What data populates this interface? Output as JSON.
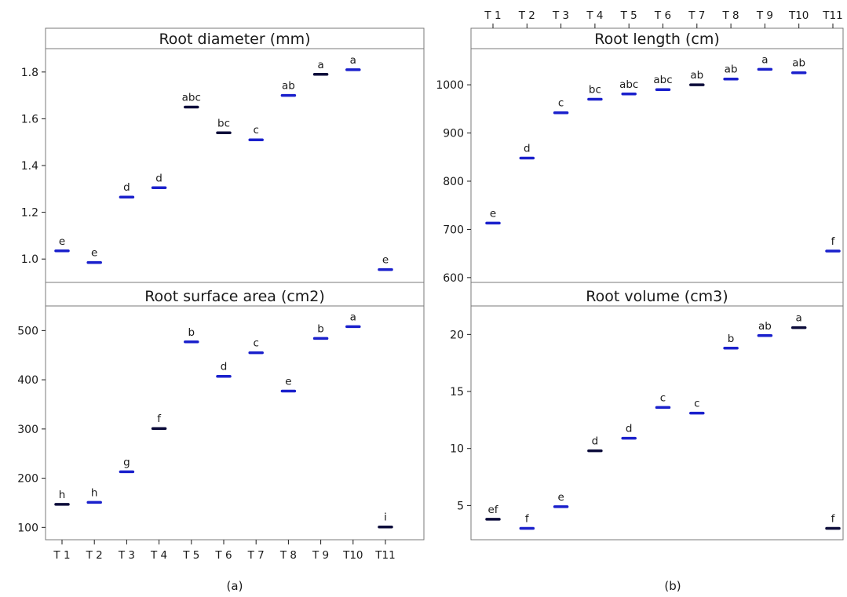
{
  "figure": {
    "captions": [
      "(a)",
      "(b)"
    ]
  },
  "chart_data": [
    {
      "type": "scatter",
      "title": "Root diameter (mm)",
      "categories": [
        "T 1",
        "T 2",
        "T 3",
        "T 4",
        "T 5",
        "T 6",
        "T 7",
        "T 8",
        "T 9",
        "T10",
        "T11"
      ],
      "values": [
        1.035,
        0.985,
        1.265,
        1.305,
        1.65,
        1.54,
        1.51,
        1.7,
        1.79,
        1.81,
        0.955
      ],
      "letters": [
        "e",
        "e",
        "d",
        "d",
        "abc",
        "bc",
        "c",
        "ab",
        "a",
        "a",
        "e"
      ],
      "marker_colors": [
        "#1a20cc",
        "#1a20cc",
        "#1a20cc",
        "#1a20cc",
        "#0c0c3a",
        "#0c0c3a",
        "#1a20cc",
        "#1a20cc",
        "#0c0c3a",
        "#1a20cc",
        "#1a20cc"
      ],
      "yticks": [
        "1.0",
        "1.2",
        "1.4",
        "1.6",
        "1.8"
      ],
      "ytick_values": [
        1.0,
        1.2,
        1.4,
        1.6,
        1.8
      ],
      "ylim": [
        0.9,
        1.9
      ]
    },
    {
      "type": "scatter",
      "title": "Root surface area (cm2)",
      "categories": [
        "T 1",
        "T 2",
        "T 3",
        "T 4",
        "T 5",
        "T 6",
        "T 7",
        "T 8",
        "T 9",
        "T10",
        "T11"
      ],
      "values": [
        147,
        151,
        213,
        301,
        477,
        407,
        455,
        377,
        484,
        508,
        101
      ],
      "letters": [
        "h",
        "h",
        "g",
        "f",
        "b",
        "d",
        "c",
        "e",
        "b",
        "a",
        "i"
      ],
      "marker_colors": [
        "#0c0c3a",
        "#1a20cc",
        "#1a20cc",
        "#0c0c3a",
        "#1a20cc",
        "#1a20cc",
        "#1a20cc",
        "#1a20cc",
        "#1a20cc",
        "#1a20cc",
        "#0c0c3a"
      ],
      "yticks": [
        "100",
        "200",
        "300",
        "400",
        "500"
      ],
      "ytick_values": [
        100,
        200,
        300,
        400,
        500
      ],
      "ylim": [
        75,
        550
      ],
      "xticks_shown": true
    },
    {
      "type": "scatter",
      "title": "Root length (cm)",
      "categories": [
        "T 1",
        "T 2",
        "T 3",
        "T 4",
        "T 5",
        "T 6",
        "T 7",
        "T 8",
        "T 9",
        "T10",
        "T11"
      ],
      "values": [
        713,
        848,
        942,
        970,
        981,
        990,
        1000,
        1012,
        1032,
        1025,
        655
      ],
      "letters": [
        "e",
        "d",
        "c",
        "bc",
        "abc",
        "abc",
        "ab",
        "ab",
        "a",
        "ab",
        "f"
      ],
      "marker_colors": [
        "#1a20cc",
        "#1a20cc",
        "#1a20cc",
        "#1a20cc",
        "#1a20cc",
        "#1a20cc",
        "#0c0c3a",
        "#1a20cc",
        "#1a20cc",
        "#1a20cc",
        "#1a20cc"
      ],
      "yticks": [
        "600",
        "700",
        "800",
        "900",
        "1000"
      ],
      "ytick_values": [
        600,
        700,
        800,
        900,
        1000
      ],
      "ylim": [
        590,
        1075
      ],
      "xticks_top_shown": true
    },
    {
      "type": "scatter",
      "title": "Root volume (cm3)",
      "categories": [
        "T 1",
        "T 2",
        "T 3",
        "T 4",
        "T 5",
        "T 6",
        "T 7",
        "T 8",
        "T 9",
        "T10",
        "T11"
      ],
      "values": [
        3.8,
        3.0,
        4.9,
        9.8,
        10.9,
        13.6,
        13.1,
        18.8,
        19.9,
        20.6,
        3.0
      ],
      "letters": [
        "ef",
        "f",
        "e",
        "d",
        "d",
        "c",
        "c",
        "b",
        "ab",
        "a",
        "f"
      ],
      "marker_colors": [
        "#0c0c3a",
        "#1a20cc",
        "#1a20cc",
        "#0c0c3a",
        "#1a20cc",
        "#1a20cc",
        "#1a20cc",
        "#1a20cc",
        "#1a20cc",
        "#0c0c3a",
        "#0c0c3a"
      ],
      "yticks": [
        "5",
        "10",
        "15",
        "20"
      ],
      "ytick_values": [
        5,
        10,
        15,
        20
      ],
      "ylim": [
        2.0,
        22.5
      ]
    }
  ]
}
